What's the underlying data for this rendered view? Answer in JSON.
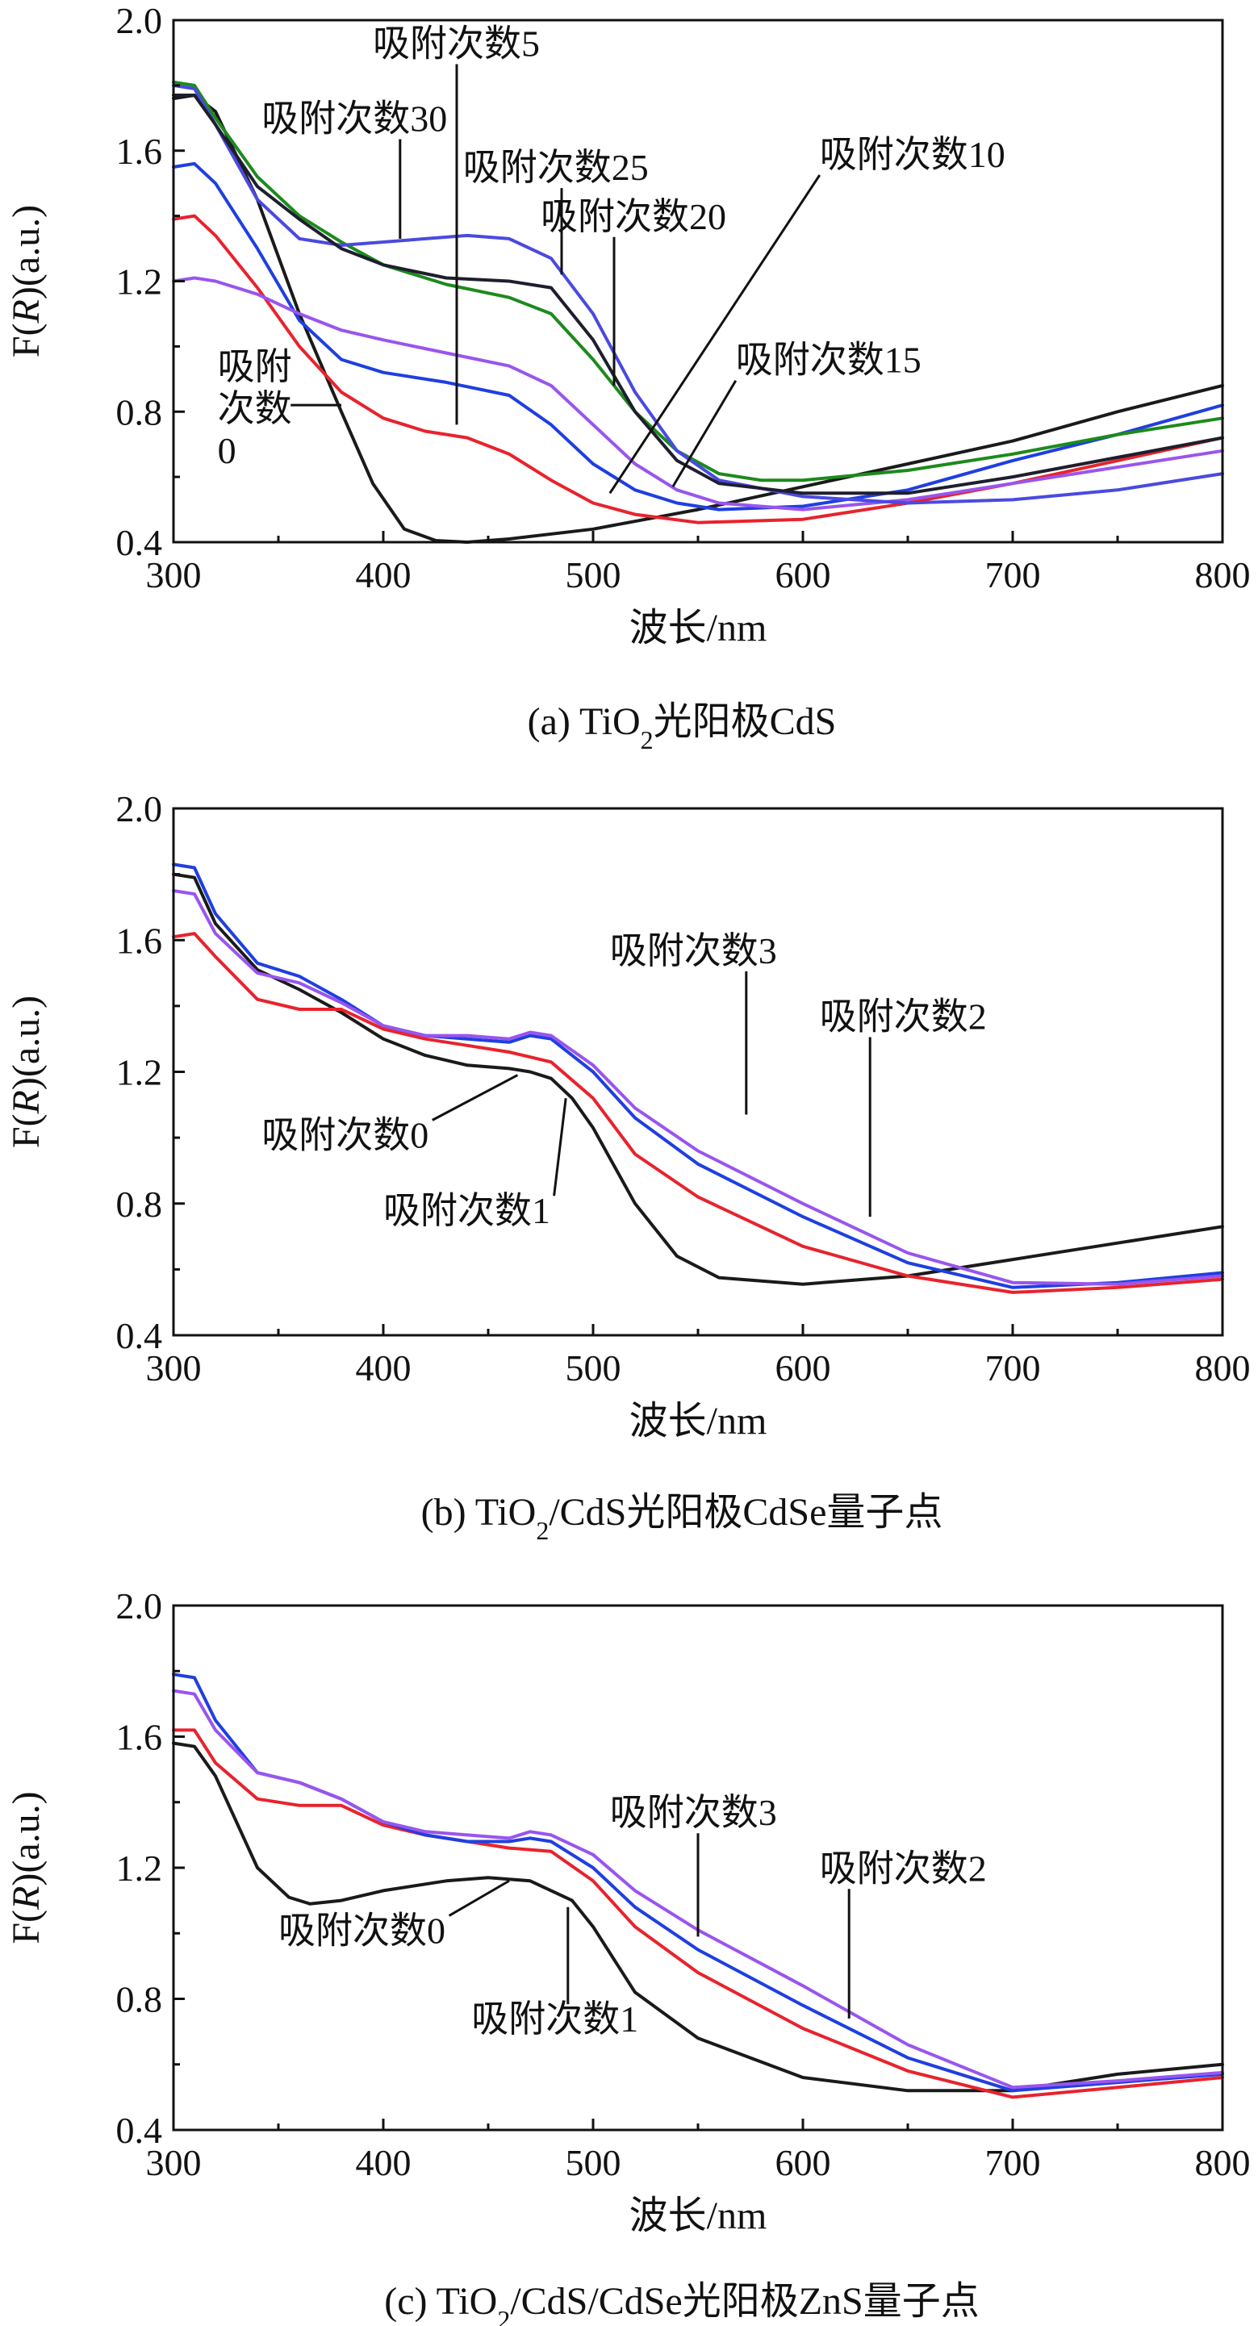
{
  "chart_data": [
    {
      "type": "line",
      "caption": {
        "prefix": "(a) TiO",
        "sub": "2",
        "suffix": "光阳极CdS"
      },
      "xlabel": "波长/nm",
      "ylabel": {
        "pre": "F(",
        "italic": "R",
        "post": ")(a.u.)"
      },
      "xlim": [
        300,
        800
      ],
      "ylim": [
        0.4,
        2.0
      ],
      "xticks": [
        "300",
        "400",
        "500",
        "600",
        "700",
        "800"
      ],
      "yticks": [
        "0.4",
        "0.8",
        "1.2",
        "1.6",
        "2.0"
      ],
      "grid": false,
      "series": [
        {
          "name": "吸附次数0",
          "color": "#1a1a1a",
          "x": [
            300,
            310,
            320,
            340,
            360,
            380,
            395,
            410,
            425,
            440,
            460,
            500,
            550,
            600,
            650,
            700,
            750,
            800
          ],
          "y": [
            1.76,
            1.77,
            1.72,
            1.45,
            1.1,
            0.8,
            0.58,
            0.44,
            0.405,
            0.4,
            0.41,
            0.44,
            0.5,
            0.57,
            0.64,
            0.71,
            0.8,
            0.88
          ]
        },
        {
          "name": "吸附次数5",
          "color": "#e8232d",
          "x": [
            300,
            310,
            320,
            340,
            360,
            380,
            400,
            420,
            440,
            460,
            480,
            500,
            520,
            550,
            600,
            650,
            700,
            750,
            800
          ],
          "y": [
            1.39,
            1.4,
            1.34,
            1.18,
            1.0,
            0.86,
            0.78,
            0.74,
            0.72,
            0.67,
            0.59,
            0.52,
            0.485,
            0.46,
            0.47,
            0.52,
            0.58,
            0.65,
            0.72
          ]
        },
        {
          "name": "吸附次数10",
          "color": "#1f3fe0",
          "x": [
            300,
            310,
            320,
            340,
            360,
            380,
            400,
            430,
            460,
            480,
            500,
            520,
            540,
            560,
            600,
            650,
            700,
            750,
            800
          ],
          "y": [
            1.55,
            1.56,
            1.5,
            1.3,
            1.08,
            0.96,
            0.92,
            0.89,
            0.85,
            0.76,
            0.64,
            0.56,
            0.52,
            0.5,
            0.51,
            0.56,
            0.65,
            0.73,
            0.82
          ]
        },
        {
          "name": "吸附次数15",
          "color": "#9955ee",
          "x": [
            300,
            310,
            320,
            340,
            360,
            380,
            400,
            430,
            460,
            480,
            500,
            520,
            540,
            560,
            600,
            650,
            700,
            750,
            800
          ],
          "y": [
            1.2,
            1.21,
            1.2,
            1.16,
            1.1,
            1.05,
            1.02,
            0.98,
            0.94,
            0.88,
            0.76,
            0.64,
            0.56,
            0.52,
            0.5,
            0.53,
            0.58,
            0.63,
            0.68
          ]
        },
        {
          "name": "吸附次数20",
          "color": "#1d8a1d",
          "x": [
            300,
            310,
            320,
            340,
            360,
            380,
            400,
            430,
            460,
            480,
            500,
            520,
            540,
            560,
            580,
            600,
            650,
            700,
            750,
            800
          ],
          "y": [
            1.81,
            1.8,
            1.7,
            1.52,
            1.4,
            1.32,
            1.25,
            1.19,
            1.15,
            1.1,
            0.96,
            0.8,
            0.68,
            0.61,
            0.59,
            0.59,
            0.62,
            0.67,
            0.73,
            0.78
          ]
        },
        {
          "name": "吸附次数25",
          "color": "#4a4ae0",
          "x": [
            300,
            310,
            320,
            340,
            360,
            380,
            400,
            420,
            440,
            460,
            480,
            500,
            520,
            540,
            560,
            600,
            650,
            700,
            750,
            800
          ],
          "y": [
            1.8,
            1.79,
            1.68,
            1.45,
            1.33,
            1.31,
            1.32,
            1.33,
            1.34,
            1.33,
            1.27,
            1.1,
            0.86,
            0.68,
            0.59,
            0.54,
            0.52,
            0.53,
            0.56,
            0.61
          ]
        },
        {
          "name": "吸附次数30",
          "color": "#1e1e2e",
          "x": [
            300,
            310,
            320,
            340,
            360,
            380,
            400,
            430,
            460,
            480,
            500,
            520,
            540,
            560,
            600,
            650,
            700,
            750,
            800
          ],
          "y": [
            1.77,
            1.77,
            1.68,
            1.49,
            1.39,
            1.3,
            1.25,
            1.21,
            1.2,
            1.18,
            1.02,
            0.8,
            0.65,
            0.58,
            0.55,
            0.55,
            0.6,
            0.66,
            0.72
          ]
        }
      ],
      "annotations": [
        {
          "text": "吸附次数5",
          "x": 395,
          "y": 1.89,
          "tx": 435,
          "ty": 0.76
        },
        {
          "text": "吸附次数30",
          "x": 342,
          "y": 1.66,
          "tx": 408,
          "ty": 1.33
        },
        {
          "text": "吸附次数25",
          "x": 438,
          "y": 1.51,
          "tx": 485,
          "ty": 1.22
        },
        {
          "text": "吸附次数10",
          "x": 608,
          "y": 1.55,
          "tx": 508,
          "ty": 0.55
        },
        {
          "text": "吸附次数20",
          "x": 475,
          "y": 1.36,
          "tx": 510,
          "ty": 0.88
        },
        {
          "text": "吸附次数15",
          "x": 568,
          "y": 0.92,
          "tx": 538,
          "ty": 0.57
        },
        {
          "text": [
            "吸附",
            "次数",
            "0"
          ],
          "x": 321,
          "y": 0.9,
          "tx": 380,
          "ty": 0.82
        }
      ]
    },
    {
      "type": "line",
      "caption": {
        "prefix": "(b) TiO",
        "sub": "2",
        "suffix": "/CdS光阳极CdSe量子点"
      },
      "xlabel": "波长/nm",
      "ylabel": {
        "pre": "F(",
        "italic": "R",
        "post": ")(a.u.)"
      },
      "xlim": [
        300,
        800
      ],
      "ylim": [
        0.4,
        2.0
      ],
      "xticks": [
        "300",
        "400",
        "500",
        "600",
        "700",
        "800"
      ],
      "yticks": [
        "0.4",
        "0.8",
        "1.2",
        "1.6",
        "2.0"
      ],
      "grid": false,
      "series": [
        {
          "name": "吸附次数0",
          "color": "#1a1a1a",
          "x": [
            300,
            310,
            320,
            340,
            360,
            380,
            400,
            420,
            440,
            460,
            470,
            480,
            490,
            500,
            520,
            540,
            560,
            600,
            650,
            700,
            750,
            800
          ],
          "y": [
            1.8,
            1.79,
            1.65,
            1.51,
            1.45,
            1.38,
            1.3,
            1.25,
            1.22,
            1.21,
            1.2,
            1.18,
            1.12,
            1.03,
            0.8,
            0.64,
            0.575,
            0.555,
            0.58,
            0.63,
            0.68,
            0.73
          ]
        },
        {
          "name": "吸附次数1",
          "color": "#e8232d",
          "x": [
            300,
            310,
            320,
            340,
            360,
            380,
            400,
            420,
            440,
            460,
            480,
            500,
            520,
            550,
            600,
            650,
            700,
            750,
            800
          ],
          "y": [
            1.61,
            1.62,
            1.55,
            1.42,
            1.39,
            1.39,
            1.33,
            1.3,
            1.28,
            1.26,
            1.23,
            1.12,
            0.95,
            0.82,
            0.67,
            0.58,
            0.53,
            0.545,
            0.57
          ]
        },
        {
          "name": "吸附次数2",
          "color": "#1f3fe0",
          "x": [
            300,
            310,
            320,
            340,
            360,
            380,
            400,
            420,
            440,
            460,
            470,
            480,
            500,
            520,
            550,
            600,
            650,
            700,
            750,
            800
          ],
          "y": [
            1.83,
            1.82,
            1.68,
            1.53,
            1.49,
            1.42,
            1.34,
            1.31,
            1.3,
            1.29,
            1.31,
            1.3,
            1.2,
            1.06,
            0.92,
            0.76,
            0.62,
            0.545,
            0.56,
            0.59
          ]
        },
        {
          "name": "吸附次数3",
          "color": "#9955ee",
          "x": [
            300,
            310,
            320,
            340,
            360,
            380,
            400,
            420,
            440,
            460,
            470,
            480,
            500,
            520,
            550,
            600,
            650,
            700,
            750,
            800
          ],
          "y": [
            1.75,
            1.74,
            1.62,
            1.5,
            1.47,
            1.41,
            1.34,
            1.31,
            1.31,
            1.3,
            1.32,
            1.31,
            1.22,
            1.09,
            0.96,
            0.8,
            0.65,
            0.56,
            0.555,
            0.58
          ]
        }
      ],
      "annotations": [
        {
          "text": "吸附次数3",
          "x": 508,
          "y": 1.53,
          "tx": 573,
          "ty": 1.07
        },
        {
          "text": "吸附次数2",
          "x": 608,
          "y": 1.33,
          "tx": 632,
          "ty": 0.76
        },
        {
          "text": "吸附次数0",
          "x": 342,
          "y": 0.97,
          "tx": 464,
          "ty": 1.19
        },
        {
          "text": "吸附次数1",
          "x": 400,
          "y": 0.74,
          "tx": 487,
          "ty": 1.12
        }
      ]
    },
    {
      "type": "line",
      "caption": {
        "prefix": "(c) TiO",
        "sub": "2",
        "suffix": "/CdS/CdSe光阳极ZnS量子点"
      },
      "xlabel": "波长/nm",
      "ylabel": {
        "pre": "F(",
        "italic": "R",
        "post": ")(a.u.)"
      },
      "xlim": [
        300,
        800
      ],
      "ylim": [
        0.4,
        2.0
      ],
      "xticks": [
        "300",
        "400",
        "500",
        "600",
        "700",
        "800"
      ],
      "yticks": [
        "0.4",
        "0.8",
        "1.2",
        "1.6",
        "2.0"
      ],
      "grid": false,
      "series": [
        {
          "name": "吸附次数0",
          "color": "#1a1a1a",
          "x": [
            300,
            310,
            320,
            340,
            355,
            365,
            380,
            400,
            430,
            450,
            470,
            490,
            500,
            520,
            550,
            600,
            650,
            700,
            750,
            800
          ],
          "y": [
            1.58,
            1.57,
            1.48,
            1.2,
            1.11,
            1.09,
            1.1,
            1.13,
            1.16,
            1.17,
            1.16,
            1.1,
            1.02,
            0.82,
            0.68,
            0.56,
            0.52,
            0.52,
            0.57,
            0.6
          ]
        },
        {
          "name": "吸附次数1",
          "color": "#e8232d",
          "x": [
            300,
            310,
            320,
            340,
            360,
            380,
            400,
            420,
            440,
            460,
            480,
            500,
            520,
            550,
            600,
            650,
            700,
            750,
            800
          ],
          "y": [
            1.62,
            1.62,
            1.52,
            1.41,
            1.39,
            1.39,
            1.33,
            1.3,
            1.28,
            1.26,
            1.25,
            1.16,
            1.02,
            0.88,
            0.71,
            0.58,
            0.5,
            0.53,
            0.56
          ]
        },
        {
          "name": "吸附次数2",
          "color": "#1f3fe0",
          "x": [
            300,
            310,
            320,
            340,
            360,
            380,
            400,
            420,
            440,
            460,
            470,
            480,
            500,
            520,
            550,
            600,
            650,
            700,
            750,
            800
          ],
          "y": [
            1.79,
            1.78,
            1.65,
            1.49,
            1.46,
            1.41,
            1.34,
            1.3,
            1.28,
            1.28,
            1.29,
            1.28,
            1.2,
            1.08,
            0.95,
            0.78,
            0.62,
            0.52,
            0.545,
            0.57
          ]
        },
        {
          "name": "吸附次数3",
          "color": "#9955ee",
          "x": [
            300,
            310,
            320,
            340,
            360,
            380,
            400,
            420,
            440,
            460,
            470,
            480,
            500,
            520,
            550,
            600,
            650,
            700,
            750,
            800
          ],
          "y": [
            1.74,
            1.73,
            1.62,
            1.49,
            1.46,
            1.41,
            1.34,
            1.31,
            1.3,
            1.29,
            1.31,
            1.3,
            1.24,
            1.13,
            1.01,
            0.84,
            0.66,
            0.53,
            0.55,
            0.575
          ]
        }
      ],
      "annotations": [
        {
          "text": "吸附次数3",
          "x": 508,
          "y": 1.33,
          "tx": 550,
          "ty": 0.99
        },
        {
          "text": "吸附次数2",
          "x": 608,
          "y": 1.16,
          "tx": 622,
          "ty": 0.74
        },
        {
          "text": "吸附次数0",
          "x": 350,
          "y": 0.97,
          "tx": 460,
          "ty": 1.16
        },
        {
          "text": "吸附次数1",
          "x": 442,
          "y": 0.7,
          "tx": 488,
          "ty": 1.08
        }
      ]
    }
  ]
}
